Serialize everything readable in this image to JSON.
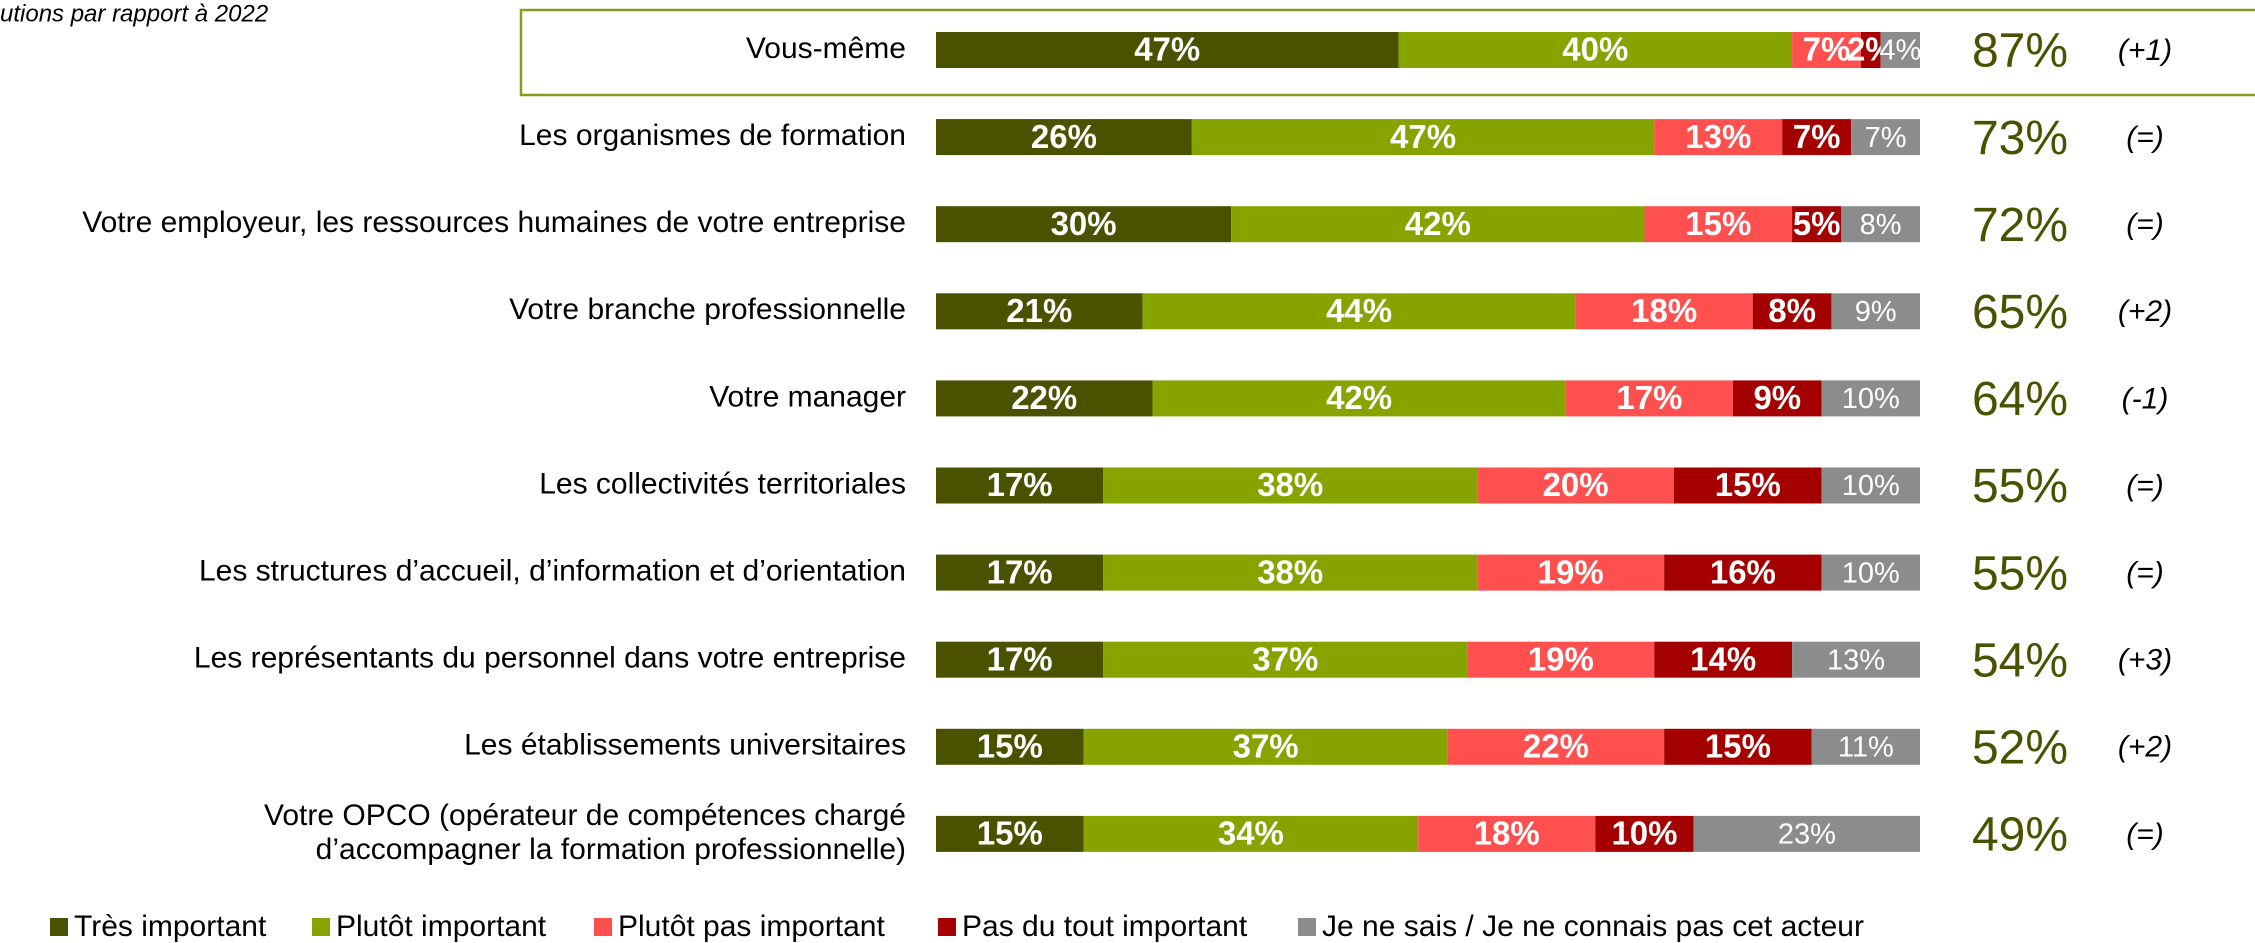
{
  "chart_data": {
    "type": "bar",
    "orientation": "horizontal",
    "stacked": true,
    "note": "utions par rapport à 2022",
    "categories": [
      "Vous-même",
      "Les organismes de formation",
      "Votre employeur, les ressources humaines de votre entreprise",
      "Votre branche professionnelle",
      "Votre manager",
      "Les collectivités territoriales",
      "Les structures  d’accueil, d’information et d’orientation",
      "Les représentants du personnel dans votre entreprise",
      "Les établissements universitaires",
      "Votre OPCO (opérateur de compétences chargé\nd’accompagner la formation professionnelle)"
    ],
    "series": [
      {
        "name": "Très important",
        "color": "#4a5200",
        "values": [
          47,
          26,
          30,
          21,
          22,
          17,
          17,
          17,
          15,
          15
        ],
        "value_labels": [
          "47%",
          "26%",
          "30%",
          "21%",
          "22%",
          "17%",
          "17%",
          "17%",
          "15%",
          "15%"
        ]
      },
      {
        "name": "Plutôt important",
        "color": "#86a300",
        "values": [
          40,
          47,
          42,
          44,
          42,
          38,
          38,
          37,
          37,
          34
        ],
        "value_labels": [
          "40%",
          "47%",
          "42%",
          "44%",
          "42%",
          "38%",
          "38%",
          "37%",
          "37%",
          "34%"
        ]
      },
      {
        "name": "Plutôt pas important",
        "color": "#ff5050",
        "values": [
          7,
          13,
          15,
          18,
          17,
          20,
          19,
          19,
          22,
          18
        ],
        "value_labels": [
          "7%",
          "13%",
          "15%",
          "18%",
          "17%",
          "20%",
          "19%",
          "19%",
          "22%",
          "18%"
        ]
      },
      {
        "name": "Pas du tout important",
        "color": "#a50000",
        "values": [
          2,
          7,
          5,
          8,
          9,
          15,
          16,
          14,
          15,
          10
        ],
        "value_labels": [
          "2%",
          "7%",
          "5%",
          "8%",
          "9%",
          "15%",
          "16%",
          "14%",
          "15%",
          "10%"
        ]
      },
      {
        "name": "Je ne sais / Je ne connais pas cet acteur",
        "color": "#8c8c8c",
        "values": [
          4,
          7,
          8,
          9,
          10,
          10,
          10,
          13,
          11,
          23
        ],
        "value_labels": [
          "4%",
          "7%",
          "8%",
          "9%",
          "10%",
          "10%",
          "10%",
          "13%",
          "11%",
          "23%"
        ]
      }
    ],
    "totals": {
      "values": [
        87,
        73,
        72,
        65,
        64,
        55,
        55,
        54,
        52,
        49
      ],
      "value_labels": [
        "87%",
        "73%",
        "72%",
        "65%",
        "64%",
        "55%",
        "55%",
        "54%",
        "52%",
        "49%"
      ]
    },
    "changes": [
      "(+1)",
      "(=)",
      "(=)",
      "(+2)",
      "(-1)",
      "(=)",
      "(=)",
      "(+3)",
      "(+2)",
      "(=)"
    ],
    "highlight_color": "#8a9a1a",
    "legend": "bottom"
  }
}
